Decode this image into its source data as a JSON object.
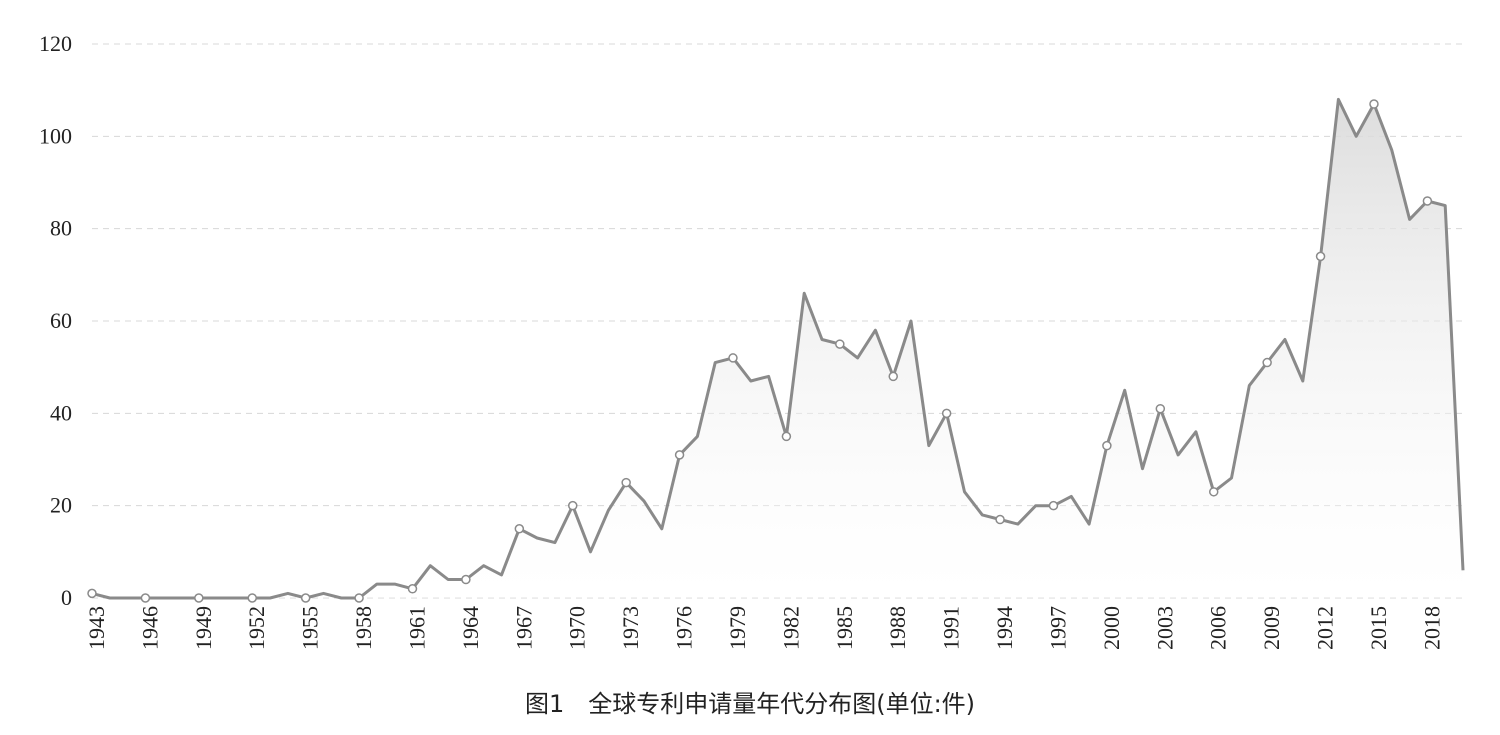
{
  "chart_data": {
    "type": "line",
    "title": "图1　全球专利申请量年代分布图(单位:件)",
    "categories": [
      "1943",
      null,
      null,
      "1946",
      null,
      null,
      "1949",
      null,
      null,
      "1952",
      null,
      null,
      "1955",
      null,
      null,
      "1958",
      null,
      null,
      "1961",
      null,
      null,
      "1964",
      null,
      null,
      "1967",
      null,
      null,
      "1970",
      null,
      null,
      "1973",
      null,
      null,
      "1976",
      null,
      null,
      "1979",
      null,
      null,
      "1982",
      null,
      null,
      "1985",
      null,
      null,
      "1988",
      null,
      null,
      "1991",
      null,
      null,
      "1994",
      null,
      null,
      "1997",
      null,
      null,
      "2000",
      null,
      null,
      "2003",
      null,
      null,
      "2006",
      null,
      null,
      "2009",
      null,
      null,
      "2012",
      null,
      null,
      "2015",
      null,
      null,
      "2018",
      null,
      null
    ],
    "values": [
      1,
      0,
      0,
      0,
      0,
      0,
      0,
      0,
      0,
      0,
      0,
      1,
      0,
      1,
      0,
      0,
      3,
      3,
      2,
      7,
      4,
      4,
      7,
      5,
      15,
      13,
      12,
      20,
      10,
      19,
      25,
      21,
      15,
      31,
      35,
      51,
      52,
      47,
      48,
      35,
      66,
      56,
      55,
      52,
      58,
      48,
      60,
      33,
      40,
      23,
      18,
      17,
      16,
      20,
      20,
      22,
      16,
      33,
      45,
      28,
      41,
      31,
      36,
      23,
      26,
      46,
      51,
      56,
      47,
      74,
      108,
      100,
      107,
      97,
      82,
      86,
      85,
      6
    ],
    "color": "#8a8a8a",
    "ylim": [
      0,
      120
    ],
    "yticks": [
      0,
      20,
      40,
      60,
      80,
      100,
      120
    ],
    "grid": true
  }
}
